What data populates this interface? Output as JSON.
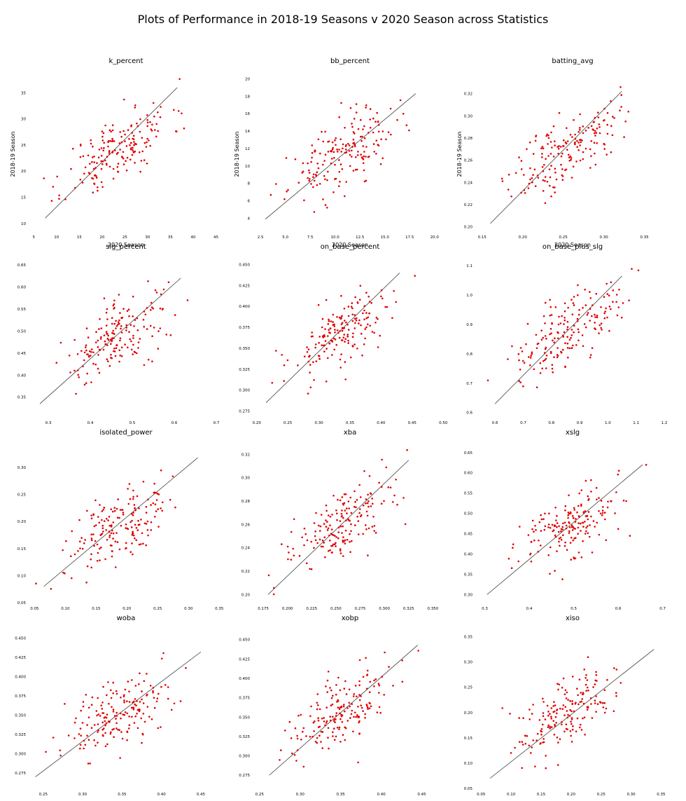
{
  "figure": {
    "title": "Plots of Performance in 2018-19 Seasons v 2020 Season across Statistics"
  },
  "chart_data": [
    {
      "type": "scatter",
      "title": "k_percent",
      "xlabel": "2020 Season",
      "ylabel": "2018-19 Season",
      "xlim": [
        4.5,
        46
      ],
      "ylim": [
        8.5,
        38
      ],
      "xticks": [
        5,
        10,
        15,
        20,
        25,
        30,
        35,
        40,
        45
      ],
      "yticks": [
        10,
        15,
        20,
        25,
        30,
        35
      ],
      "reference_line": [
        [
          7.5,
          11
        ],
        [
          36.5,
          36
        ]
      ],
      "seed": 11,
      "grid": false
    },
    {
      "type": "scatter",
      "title": "bb_percent",
      "xlabel": "2020 Season",
      "ylabel": "2018-19 Season",
      "xlim": [
        2,
        21
      ],
      "ylim": [
        2.5,
        20.2
      ],
      "xticks": [
        2.5,
        5.0,
        7.5,
        10.0,
        12.5,
        15.0,
        17.5,
        20.0
      ],
      "yticks": [
        4,
        6,
        8,
        10,
        12,
        14,
        16,
        18,
        20
      ],
      "reference_line": [
        [
          3,
          3.9
        ],
        [
          18.1,
          18.3
        ]
      ],
      "seed": 23,
      "grid": false
    },
    {
      "type": "scatter",
      "title": "batting_avg",
      "xlabel": "2020 Season",
      "ylabel": "2018-19 Season",
      "xlim": [
        0.145,
        0.378
      ],
      "ylim": [
        0.196,
        0.335
      ],
      "xticks": [
        0.15,
        0.2,
        0.25,
        0.3,
        0.35
      ],
      "yticks": [
        0.2,
        0.22,
        0.24,
        0.26,
        0.28,
        0.3,
        0.32
      ],
      "reference_line": [
        [
          0.16,
          0.203
        ],
        [
          0.322,
          0.322
        ]
      ],
      "seed": 37,
      "grid": false
    },
    {
      "type": "scatter",
      "title": "slg_percent",
      "xlabel": "",
      "ylabel": "",
      "xlim": [
        0.26,
        0.71
      ],
      "ylim": [
        0.305,
        0.655
      ],
      "xticks": [
        0.3,
        0.4,
        0.5,
        0.6,
        0.7
      ],
      "yticks": [
        0.35,
        0.4,
        0.45,
        0.5,
        0.55,
        0.6,
        0.65
      ],
      "reference_line": [
        [
          0.28,
          0.335
        ],
        [
          0.615,
          0.62
        ]
      ],
      "seed": 41,
      "grid": false
    },
    {
      "type": "scatter",
      "title": "on_base_percent",
      "xlabel": "",
      "ylabel": "",
      "xlim": [
        0.198,
        0.502
      ],
      "ylim": [
        0.268,
        0.452
      ],
      "xticks": [
        0.2,
        0.25,
        0.3,
        0.35,
        0.4,
        0.45,
        0.5
      ],
      "yticks": [
        0.275,
        0.3,
        0.325,
        0.35,
        0.375,
        0.4,
        0.425,
        0.45
      ],
      "reference_line": [
        [
          0.215,
          0.285
        ],
        [
          0.43,
          0.44
        ]
      ],
      "seed": 53,
      "grid": false
    },
    {
      "type": "scatter",
      "title": "on_base_plus_slg",
      "xlabel": "",
      "ylabel": "",
      "xlim": [
        0.54,
        1.21
      ],
      "ylim": [
        0.585,
        1.11
      ],
      "xticks": [
        0.6,
        0.7,
        0.8,
        0.9,
        1.0,
        1.1,
        1.2
      ],
      "yticks": [
        0.6,
        0.7,
        0.8,
        0.9,
        1.0,
        1.1
      ],
      "reference_line": [
        [
          0.6,
          0.63
        ],
        [
          1.05,
          1.065
        ]
      ],
      "seed": 67,
      "grid": false
    },
    {
      "type": "scatter",
      "title": "isolated_power",
      "xlabel": "",
      "ylabel": "",
      "xlim": [
        0.045,
        0.352
      ],
      "ylim": [
        0.05,
        0.335
      ],
      "xticks": [
        0.05,
        0.1,
        0.15,
        0.2,
        0.25,
        0.3,
        0.35
      ],
      "yticks": [
        0.05,
        0.1,
        0.15,
        0.2,
        0.25,
        0.3
      ],
      "reference_line": [
        [
          0.065,
          0.08
        ],
        [
          0.315,
          0.318
        ]
      ],
      "seed": 79,
      "grid": false
    },
    {
      "type": "scatter",
      "title": "xba",
      "xlabel": "",
      "ylabel": "",
      "xlim": [
        0.167,
        0.362
      ],
      "ylim": [
        0.193,
        0.325
      ],
      "xticks": [
        0.175,
        0.2,
        0.225,
        0.25,
        0.275,
        0.3,
        0.325,
        0.35
      ],
      "yticks": [
        0.2,
        0.22,
        0.24,
        0.26,
        0.28,
        0.3,
        0.32
      ],
      "reference_line": [
        [
          0.18,
          0.2
        ],
        [
          0.325,
          0.315
        ]
      ],
      "seed": 83,
      "grid": false
    },
    {
      "type": "scatter",
      "title": "xslg",
      "xlabel": "",
      "ylabel": "",
      "xlim": [
        0.285,
        0.71
      ],
      "ylim": [
        0.28,
        0.66
      ],
      "xticks": [
        0.3,
        0.4,
        0.5,
        0.6,
        0.7
      ],
      "yticks": [
        0.3,
        0.35,
        0.4,
        0.45,
        0.5,
        0.55,
        0.6,
        0.65
      ],
      "reference_line": [
        [
          0.305,
          0.3
        ],
        [
          0.655,
          0.62
        ]
      ],
      "seed": 97,
      "grid": false
    },
    {
      "type": "scatter",
      "title": "woba",
      "xlabel": "",
      "ylabel": "",
      "xlim": [
        0.235,
        0.475
      ],
      "ylim": [
        0.255,
        0.455
      ],
      "xticks": [
        0.25,
        0.3,
        0.35,
        0.4,
        0.45
      ],
      "yticks": [
        0.275,
        0.3,
        0.325,
        0.35,
        0.375,
        0.4,
        0.425,
        0.45
      ],
      "reference_line": [
        [
          0.24,
          0.27
        ],
        [
          0.45,
          0.432
        ]
      ],
      "seed": 101,
      "grid": false
    },
    {
      "type": "scatter",
      "title": "xobp",
      "xlabel": "",
      "ylabel": "",
      "xlim": [
        0.245,
        0.478
      ],
      "ylim": [
        0.258,
        0.457
      ],
      "xticks": [
        0.25,
        0.3,
        0.35,
        0.4,
        0.45
      ],
      "yticks": [
        0.275,
        0.3,
        0.325,
        0.35,
        0.375,
        0.4,
        0.425,
        0.45
      ],
      "reference_line": [
        [
          0.262,
          0.275
        ],
        [
          0.445,
          0.443
        ]
      ],
      "seed": 113,
      "grid": false
    },
    {
      "type": "scatter",
      "title": "xiso",
      "xlabel": "",
      "ylabel": "",
      "xlim": [
        0.045,
        0.36
      ],
      "ylim": [
        0.05,
        0.355
      ],
      "xticks": [
        0.05,
        0.1,
        0.15,
        0.2,
        0.25,
        0.3,
        0.35
      ],
      "yticks": [
        0.05,
        0.1,
        0.15,
        0.2,
        0.25,
        0.3,
        0.35
      ],
      "reference_line": [
        [
          0.065,
          0.07
        ],
        [
          0.338,
          0.325
        ]
      ],
      "seed": 127,
      "grid": false
    }
  ]
}
